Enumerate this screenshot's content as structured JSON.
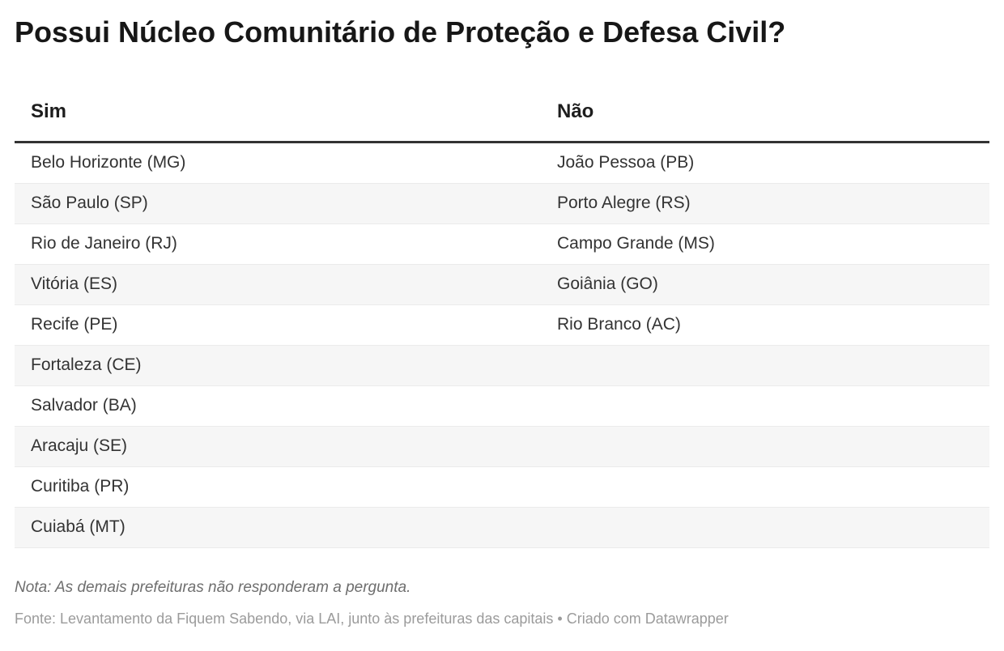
{
  "title": "Possui Núcleo Comunitário de Proteção e Defesa Civil?",
  "chart_data": {
    "type": "table",
    "title": "Possui Núcleo Comunitário de Proteção e Defesa Civil?",
    "columns": [
      "Sim",
      "Não"
    ],
    "rows": [
      [
        "Belo Horizonte (MG)",
        "João Pessoa (PB)"
      ],
      [
        "São Paulo (SP)",
        "Porto Alegre (RS)"
      ],
      [
        "Rio de Janeiro (RJ)",
        "Campo Grande (MS)"
      ],
      [
        "Vitória (ES)",
        "Goiânia (GO)"
      ],
      [
        "Recife (PE)",
        "Rio Branco (AC)"
      ],
      [
        "Fortaleza (CE)",
        ""
      ],
      [
        "Salvador (BA)",
        ""
      ],
      [
        "Aracaju (SE)",
        ""
      ],
      [
        "Curitiba (PR)",
        ""
      ],
      [
        "Cuiabá (MT)",
        ""
      ]
    ],
    "layout_hints": {
      "zebra_striping": true,
      "striped_rows": "even",
      "column_dividers": false
    }
  },
  "footer": {
    "note": "Nota: As demais prefeituras não responderam a pergunta.",
    "source": "Fonte: Levantamento da Fiquem Sabendo, via LAI, junto às prefeituras das capitais • Criado com Datawrapper"
  },
  "colors": {
    "background": "#ffffff",
    "title_text": "#171717",
    "header_text": "#1d1d1d",
    "header_border": "#333333",
    "body_text": "#333333",
    "row_stripe": "#f6f6f6",
    "row_divider": "#ebebeb",
    "note_text": "#6e6e6e",
    "source_text": "#9b9b9b"
  }
}
